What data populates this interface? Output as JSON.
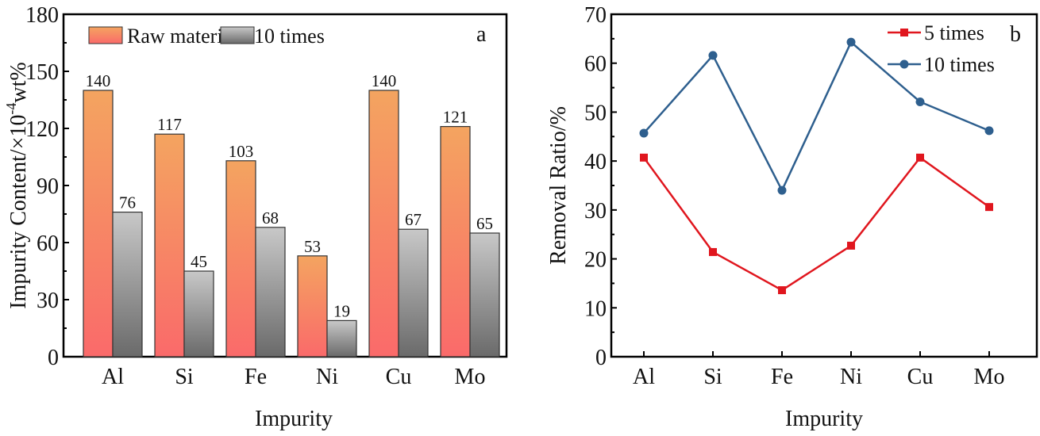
{
  "chart_data": [
    {
      "type": "bar",
      "panel_label": "a",
      "title": "",
      "xlabel": "Impurity",
      "ylabel": "Impurity Content/×10",
      "ylabel_exp": "-4",
      "ylabel_unit": "wt%",
      "ylim": [
        0,
        180
      ],
      "yticks": [
        0,
        30,
        60,
        90,
        120,
        150,
        180
      ],
      "categories": [
        "Al",
        "Si",
        "Fe",
        "Ni",
        "Cu",
        "Mo"
      ],
      "legend_position": "top-left",
      "series": [
        {
          "name": "Raw material",
          "values": [
            140,
            117,
            103,
            53,
            140,
            121
          ],
          "colors": [
            "#f4a460",
            "#fa6a6a"
          ]
        },
        {
          "name": "10 times",
          "values": [
            76,
            45,
            68,
            19,
            67,
            65
          ],
          "colors": [
            "#c8c8c8",
            "#6a6a6a"
          ]
        }
      ]
    },
    {
      "type": "line",
      "panel_label": "b",
      "title": "",
      "xlabel": "Impurity",
      "ylabel": "Removal Ratio/%",
      "ylim": [
        0,
        70
      ],
      "yticks": [
        0,
        10,
        20,
        30,
        40,
        50,
        60,
        70
      ],
      "categories": [
        "Al",
        "Si",
        "Fe",
        "Ni",
        "Cu",
        "Mo"
      ],
      "legend_position": "top-right",
      "series": [
        {
          "name": "5 times",
          "marker": "square",
          "color": "#e0161e",
          "values": [
            40.7,
            21.4,
            13.6,
            22.7,
            40.7,
            30.6
          ]
        },
        {
          "name": "10 times",
          "marker": "circle",
          "color": "#2e5f8e",
          "values": [
            45.7,
            61.6,
            34.0,
            64.3,
            52.1,
            46.2
          ]
        }
      ]
    }
  ]
}
